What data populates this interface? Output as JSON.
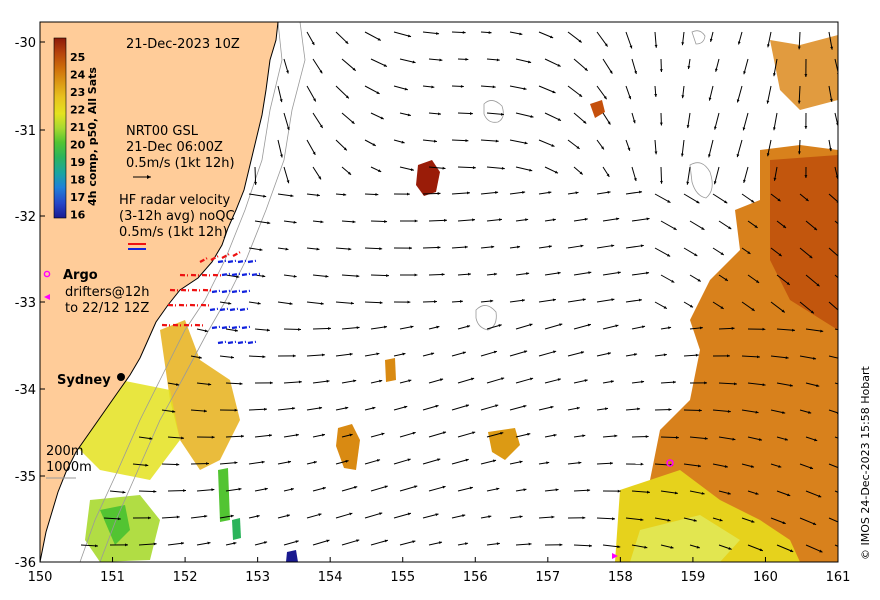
{
  "map": {
    "date_title": "21-Dec-2023 10Z",
    "credit": "© IMOS 24-Dec-2023 15:58 Hobart",
    "colorbar": {
      "title": "4h comp, p50, All Sats",
      "ticks": [
        "25",
        "24",
        "23",
        "22",
        "21",
        "20",
        "19",
        "18",
        "17",
        "16"
      ],
      "colors": [
        "#8c1a0a",
        "#b5420c",
        "#cf6f0a",
        "#dc9a14",
        "#e8c21e",
        "#e4e21e",
        "#a8d930",
        "#52c432",
        "#2bb45b",
        "#1aa5a0",
        "#2080d8",
        "#2545c8",
        "#1a1a90"
      ]
    },
    "legend": {
      "gsl_line1": "NRT00 GSL",
      "gsl_line2": "21-Dec 06:00Z",
      "gsl_line3": "0.5m/s (1kt 12h)",
      "hf_line1": "HF radar velocity",
      "hf_line2": "(3-12h avg) noQC",
      "hf_line3": "0.5m/s (1kt 12h)",
      "argo_label": "Argo",
      "drifters_line1": "drifters@12h",
      "drifters_line2": "to 22/12 12Z"
    },
    "places": {
      "sydney": "Sydney"
    },
    "isobaths": {
      "d200": "200m",
      "d1000": "1000m"
    },
    "axes": {
      "x_ticks": [
        "150",
        "151",
        "152",
        "153",
        "154",
        "155",
        "156",
        "157",
        "158",
        "159",
        "160",
        "161"
      ],
      "y_ticks": [
        "-30",
        "-31",
        "-32",
        "-33",
        "-34",
        "-35",
        "-36"
      ]
    },
    "colors": {
      "land": "#ffcc99",
      "coast": "#000000",
      "hf_red": "#ee1111",
      "hf_blue": "#1122dd",
      "argo": "#ff00ff"
    }
  }
}
